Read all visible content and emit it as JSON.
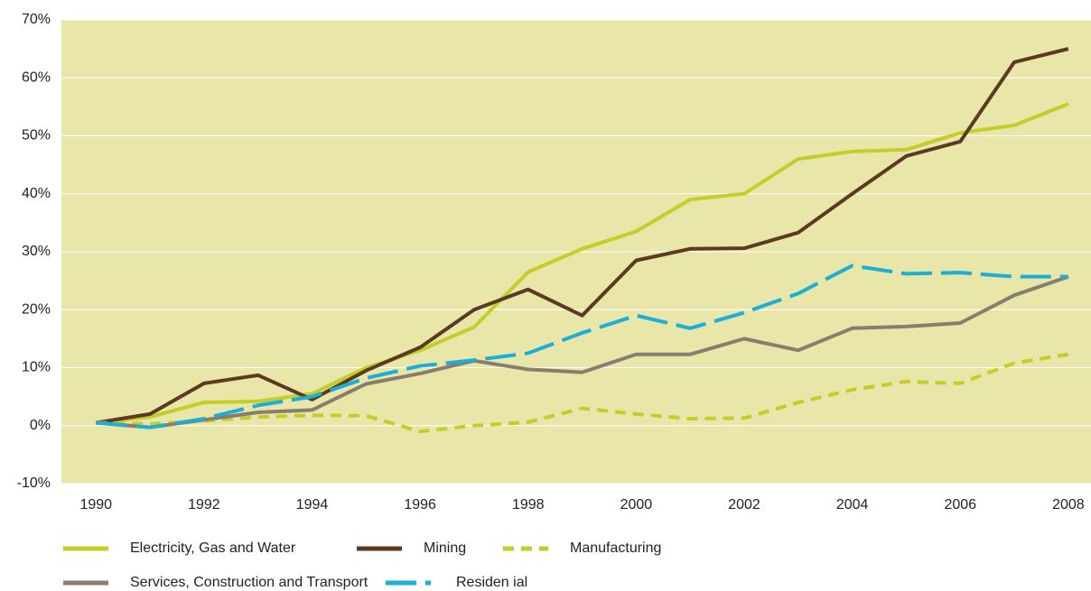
{
  "chart_data": {
    "type": "line",
    "x": [
      1990,
      1991,
      1992,
      1993,
      1994,
      1995,
      1996,
      1997,
      1998,
      1999,
      2000,
      2001,
      2002,
      2003,
      2004,
      2005,
      2006,
      2007,
      2008
    ],
    "xlim": [
      1989.36,
      2008.42
    ],
    "xticks": [
      1990,
      1992,
      1994,
      1996,
      1998,
      2000,
      2002,
      2004,
      2006,
      2008
    ],
    "ylim": [
      -10,
      70
    ],
    "yticks": [
      {
        "value": -10,
        "label": "-10%"
      },
      {
        "value": 0,
        "label": "0%"
      },
      {
        "value": 10,
        "label": "10%"
      },
      {
        "value": 20,
        "label": "20%"
      },
      {
        "value": 30,
        "label": "30%"
      },
      {
        "value": 40,
        "label": "40%"
      },
      {
        "value": 50,
        "label": "50%"
      },
      {
        "value": 60,
        "label": "60%"
      },
      {
        "value": 70,
        "label": "70%"
      }
    ],
    "grid": true,
    "series": [
      {
        "name": "Electricity, Gas and Water",
        "color": "#c5cd2a",
        "dash": "solid",
        "values": [
          0.5,
          1.5,
          4,
          4.2,
          5.5,
          10,
          13,
          17,
          26.5,
          30.5,
          33.5,
          39,
          40,
          46,
          47.3,
          47.6,
          50.5,
          51.8,
          55.5
        ]
      },
      {
        "name": "Mining",
        "color": "#5c3a22",
        "dash": "solid",
        "values": [
          0.5,
          2,
          7.3,
          8.7,
          4.5,
          9.5,
          13.5,
          20,
          23.5,
          19,
          28.5,
          30.5,
          30.6,
          33.3,
          40,
          46.5,
          49,
          62.7,
          65
        ]
      },
      {
        "name": "Manufacturing",
        "color": "#c5cd2a",
        "dash": "dashed",
        "values": [
          0.5,
          0.3,
          0.8,
          1.5,
          1.8,
          1.7,
          -1,
          0,
          0.6,
          3,
          2,
          1.2,
          1.3,
          4,
          6.2,
          7.6,
          7.3,
          10.8,
          12.3
        ]
      },
      {
        "name": "Services, Construction and Transport",
        "color": "#8a7d6e",
        "dash": "solid",
        "values": [
          0.5,
          -0.3,
          1,
          2.3,
          2.7,
          7.2,
          9,
          11.2,
          9.7,
          9.2,
          12.3,
          12.3,
          15,
          13,
          16.8,
          17.1,
          17.7,
          22.5,
          25.7
        ]
      },
      {
        "name": "Residen ial",
        "color": "#1aaed8",
        "dash": "longdash",
        "values": [
          0.5,
          -0.3,
          1.2,
          3.5,
          5,
          8.2,
          10.3,
          11.3,
          12.5,
          16,
          19,
          16.8,
          19.5,
          22.8,
          27.6,
          26.2,
          26.4,
          25.7,
          25.7
        ]
      }
    ]
  }
}
